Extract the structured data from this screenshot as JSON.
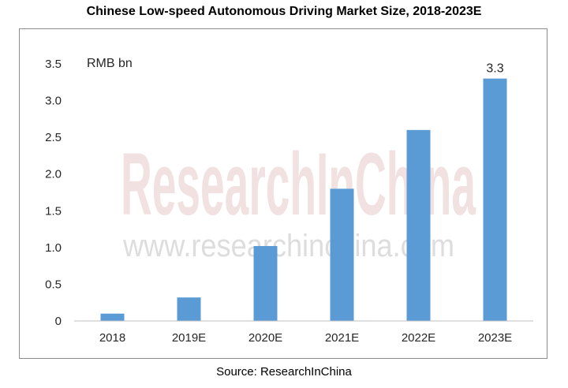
{
  "title": "Chinese Low-speed Autonomous Driving Market Size, 2018-2023E",
  "source": "Source: ResearchInChina",
  "watermark": {
    "brand": "ResearchInChina",
    "url": "www.researchinchina.com"
  },
  "chart_data": {
    "type": "bar",
    "categories": [
      "2018",
      "2019E",
      "2020E",
      "2021E",
      "2022E",
      "2023E"
    ],
    "values": [
      0.1,
      0.32,
      1.02,
      1.8,
      2.6,
      3.3
    ],
    "unit_label": "RMB bn",
    "ylim": [
      0,
      3.5
    ],
    "yticks": [
      "0",
      "0.5",
      "1.0",
      "1.5",
      "2.0",
      "2.5",
      "3.0",
      "3.5"
    ],
    "data_labels": [
      {
        "index": 5,
        "text": "3.3"
      }
    ],
    "grid": false,
    "legend": "none",
    "bar_color": "#5b9bd5"
  }
}
